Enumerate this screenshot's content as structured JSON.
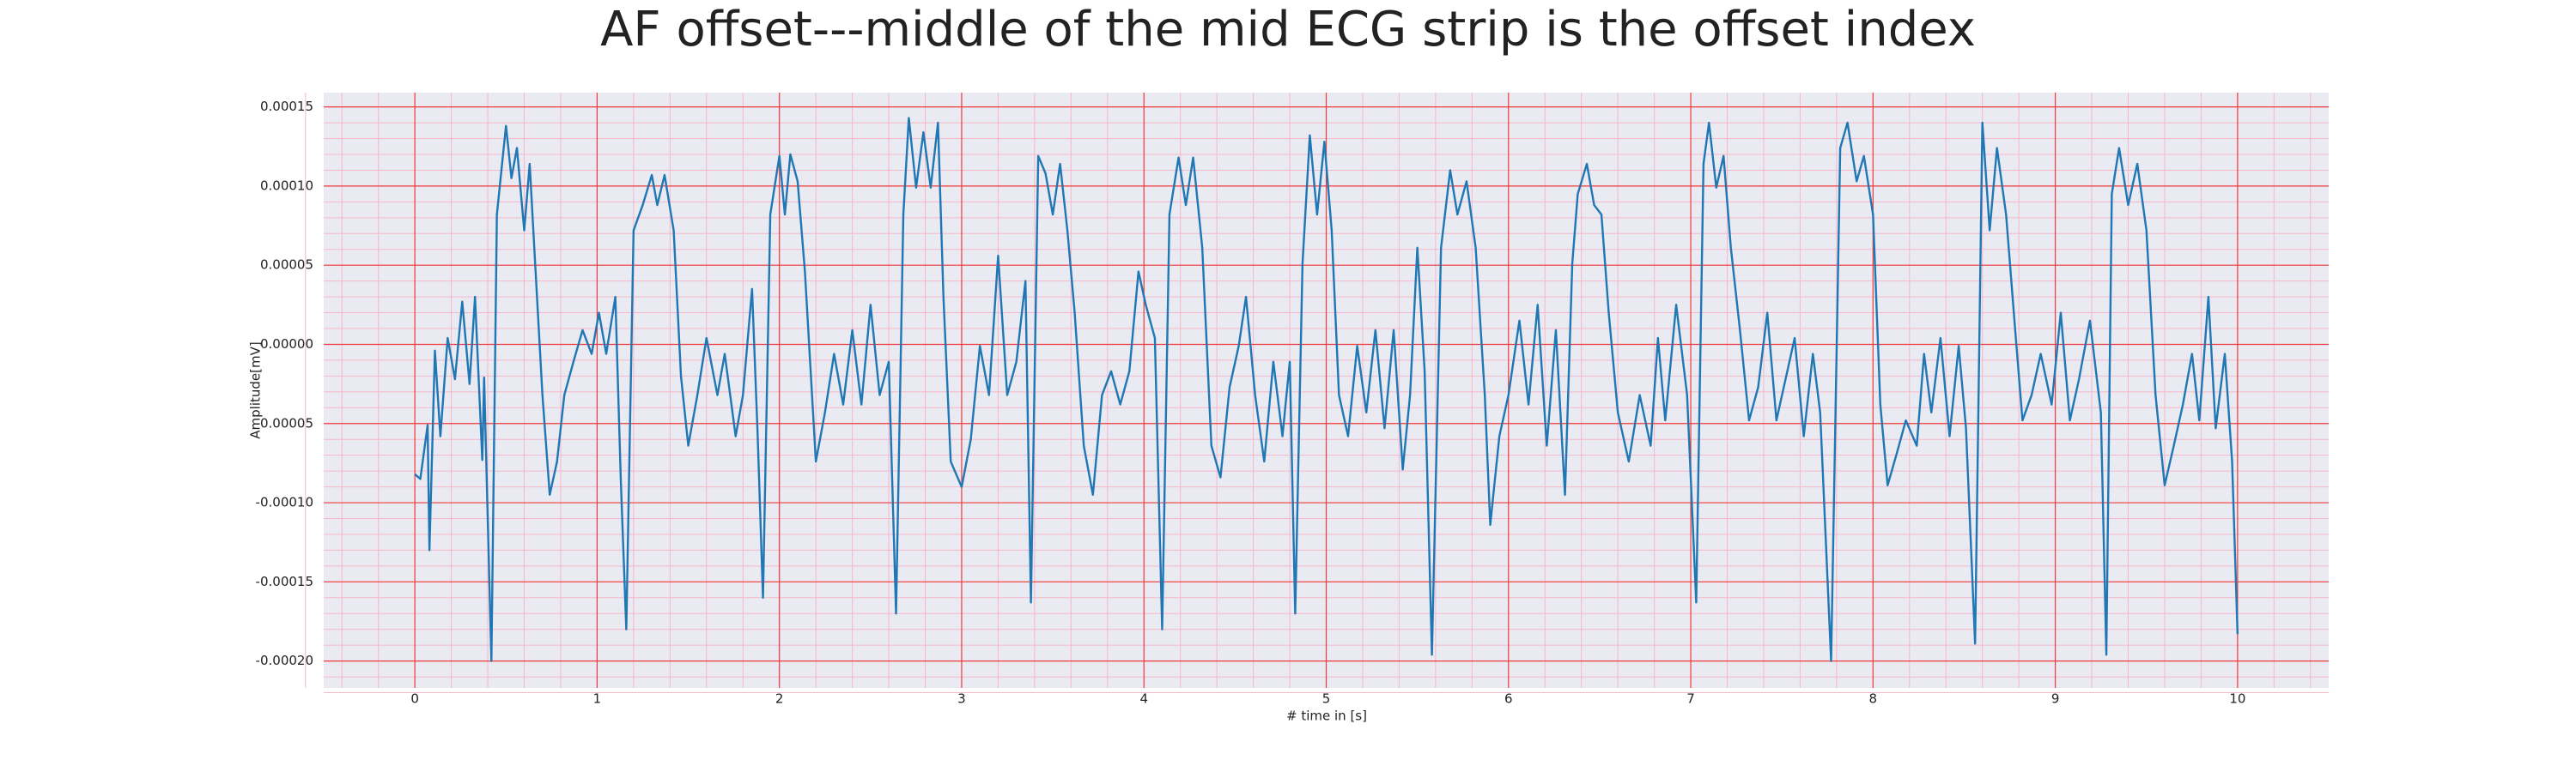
{
  "chart_data": {
    "type": "line",
    "title": "AF offset---middle of the mid ECG strip is the offset index",
    "xlabel": "# time in [s]",
    "ylabel": "Amplitude[mV]",
    "background": "#eaeaf2",
    "grid": true,
    "grid_color": "#f03c3c",
    "minor_grid": true,
    "minor_grid_color": "#f5b8c8",
    "xlim": [
      -0.5,
      10.5
    ],
    "xticks": [
      0,
      1,
      2,
      3,
      4,
      5,
      6,
      7,
      8,
      9,
      10
    ],
    "ylim": [
      -0.000217,
      0.000159
    ],
    "yticks": [
      {
        "value": -0.0002,
        "label": "-0.00020"
      },
      {
        "value": -0.00015,
        "label": "-0.00015"
      },
      {
        "value": -0.0001,
        "label": "-0.00010"
      },
      {
        "value": -5e-05,
        "label": "-0.00005"
      },
      {
        "value": 0,
        "label": "0.00000"
      },
      {
        "value": 5e-05,
        "label": "0.00005"
      },
      {
        "value": 0.0001,
        "label": "0.00010"
      },
      {
        "value": 0.00015,
        "label": "0.00015"
      }
    ],
    "series": [
      {
        "color": "#1f77b4",
        "x": [
          0,
          0.03,
          0.07,
          0.08,
          0.11,
          0.14,
          0.18,
          0.22,
          0.26,
          0.3,
          0.33,
          0.37,
          0.38,
          0.42,
          0.45,
          0.5,
          0.53,
          0.56,
          0.6,
          0.63,
          0.66,
          0.7,
          0.74,
          0.78,
          0.82,
          0.87,
          0.92,
          0.97,
          1.01,
          1.05,
          1.1,
          1.13,
          1.16,
          1.2,
          1.25,
          1.3,
          1.33,
          1.37,
          1.42,
          1.46,
          1.5,
          1.55,
          1.6,
          1.66,
          1.7,
          1.76,
          1.8,
          1.85,
          1.88,
          1.91,
          1.95,
          2.0,
          2.03,
          2.06,
          2.1,
          2.14,
          2.2,
          2.25,
          2.3,
          2.35,
          2.4,
          2.45,
          2.5,
          2.55,
          2.6,
          2.64,
          2.68,
          2.71,
          2.75,
          2.79,
          2.83,
          2.87,
          2.9,
          2.94,
          3.0,
          3.05,
          3.1,
          3.15,
          3.2,
          3.25,
          3.3,
          3.35,
          3.38,
          3.42,
          3.46,
          3.5,
          3.54,
          3.58,
          3.62,
          3.67,
          3.72,
          3.77,
          3.82,
          3.87,
          3.92,
          3.97,
          4.01,
          4.06,
          4.1,
          4.14,
          4.19,
          4.23,
          4.27,
          4.32,
          4.37,
          4.42,
          4.47,
          4.52,
          4.56,
          4.61,
          4.66,
          4.71,
          4.76,
          4.8,
          4.83,
          4.87,
          4.91,
          4.95,
          4.99,
          5.03,
          5.07,
          5.12,
          5.17,
          5.22,
          5.27,
          5.32,
          5.37,
          5.42,
          5.46,
          5.5,
          5.54,
          5.58,
          5.63,
          5.68,
          5.72,
          5.77,
          5.82,
          5.87,
          5.9,
          5.95,
          6.0,
          6.06,
          6.11,
          6.16,
          6.21,
          6.26,
          6.31,
          6.35,
          6.38,
          6.43,
          6.47,
          6.51,
          6.55,
          6.6,
          6.66,
          6.72,
          6.78,
          6.82,
          6.86,
          6.92,
          6.98,
          7.03,
          7.07,
          7.1,
          7.14,
          7.18,
          7.22,
          7.27,
          7.32,
          7.37,
          7.42,
          7.47,
          7.52,
          7.57,
          7.62,
          7.67,
          7.71,
          7.77,
          7.82,
          7.86,
          7.91,
          7.95,
          8.0,
          8.04,
          8.08,
          8.13,
          8.18,
          8.24,
          8.28,
          8.32,
          8.37,
          8.42,
          8.47,
          8.51,
          8.56,
          8.6,
          8.64,
          8.68,
          8.73,
          8.78,
          8.82,
          8.87,
          8.92,
          8.98,
          9.03,
          9.08,
          9.13,
          9.19,
          9.25,
          9.28,
          9.31,
          9.35,
          9.4,
          9.45,
          9.5,
          9.55,
          9.6,
          9.65,
          9.7,
          9.75,
          9.79,
          9.84,
          9.88,
          9.93,
          9.97,
          10.0
        ],
        "values": [
          -8.2e-05,
          -8.5e-05,
          -5.1e-05,
          -0.00013,
          -4e-06,
          -5.8e-05,
          4e-06,
          -2.2e-05,
          2.7e-05,
          -2.5e-05,
          3e-05,
          -7.3e-05,
          -2.1e-05,
          -0.0002,
          8.2e-05,
          0.000138,
          0.000105,
          0.000124,
          7.2e-05,
          0.000114,
          5.1e-05,
          -3.2e-05,
          -9.5e-05,
          -7.4e-05,
          -3.2e-05,
          -1.1e-05,
          9e-06,
          -6e-06,
          2e-05,
          -6e-06,
          3e-05,
          -8.6e-05,
          -0.00018,
          7.2e-05,
          8.8e-05,
          0.000107,
          8.8e-05,
          0.000107,
          7.2e-05,
          -2e-05,
          -6.4e-05,
          -3.2e-05,
          4e-06,
          -3.2e-05,
          -6e-06,
          -5.8e-05,
          -3.2e-05,
          3.5e-05,
          -5.5e-05,
          -0.00016,
          8.2e-05,
          0.000119,
          8.2e-05,
          0.00012,
          0.000103,
          4.6e-05,
          -7.4e-05,
          -4.3e-05,
          -6e-06,
          -3.8e-05,
          9e-06,
          -3.8e-05,
          2.5e-05,
          -3.2e-05,
          -1.1e-05,
          -0.00017,
          8.2e-05,
          0.000143,
          9.9e-05,
          0.000134,
          9.9e-05,
          0.00014,
          3e-05,
          -7.4e-05,
          -9e-05,
          -6e-05,
          -1e-06,
          -3.2e-05,
          5.6e-05,
          -3.2e-05,
          -1.1e-05,
          4e-05,
          -0.000163,
          0.000119,
          0.000108,
          8.2e-05,
          0.000114,
          7.2e-05,
          2e-05,
          -6.4e-05,
          -9.5e-05,
          -3.2e-05,
          -1.7e-05,
          -3.8e-05,
          -1.7e-05,
          4.6e-05,
          2.5e-05,
          4e-06,
          -0.00018,
          8.2e-05,
          0.000118,
          8.8e-05,
          0.000118,
          6.1e-05,
          -6.4e-05,
          -8.4e-05,
          -2.7e-05,
          -1e-06,
          3e-05,
          -3.2e-05,
          -7.4e-05,
          -1.1e-05,
          -5.8e-05,
          -1.1e-05,
          -0.00017,
          5.1e-05,
          0.000132,
          8.2e-05,
          0.000128,
          7.2e-05,
          -3.2e-05,
          -5.8e-05,
          -1e-06,
          -4.3e-05,
          9e-06,
          -5.3e-05,
          9e-06,
          -7.9e-05,
          -3.2e-05,
          6.1e-05,
          -1.7e-05,
          -0.000196,
          6.1e-05,
          0.00011,
          8.2e-05,
          0.000103,
          6.1e-05,
          -3.2e-05,
          -0.000114,
          -5.8e-05,
          -3.2e-05,
          1.5e-05,
          -3.8e-05,
          2.5e-05,
          -6.4e-05,
          9e-06,
          -9.5e-05,
          5.1e-05,
          9.5e-05,
          0.000114,
          8.8e-05,
          8.2e-05,
          2e-05,
          -4.3e-05,
          -7.4e-05,
          -3.2e-05,
          -6.4e-05,
          4e-06,
          -4.8e-05,
          2.5e-05,
          -3.2e-05,
          -0.000163,
          0.000114,
          0.00014,
          9.9e-05,
          0.000119,
          6.1e-05,
          9e-06,
          -4.8e-05,
          -2.7e-05,
          2e-05,
          -4.8e-05,
          -2.2e-05,
          4e-06,
          -5.8e-05,
          -6e-06,
          -4.3e-05,
          -0.0002,
          0.000124,
          0.00014,
          0.000103,
          0.000119,
          8.2e-05,
          -3.8e-05,
          -8.9e-05,
          -6.9e-05,
          -4.8e-05,
          -6.4e-05,
          -6e-06,
          -4.3e-05,
          4e-06,
          -5.8e-05,
          -1e-06,
          -5.3e-05,
          -0.000189,
          0.00014,
          7.2e-05,
          0.000124,
          8.2e-05,
          9e-06,
          -4.8e-05,
          -3.2e-05,
          -6e-06,
          -3.8e-05,
          2e-05,
          -4.8e-05,
          -2.2e-05,
          1.5e-05,
          -4.3e-05,
          -0.000196,
          9.5e-05,
          0.000124,
          8.8e-05,
          0.000114,
          7.2e-05,
          -3.2e-05,
          -8.9e-05,
          -6.4e-05,
          -3.8e-05,
          -6e-06,
          -4.8e-05,
          3e-05,
          -5.3e-05,
          -6e-06,
          -7.4e-05,
          -0.000183
        ]
      }
    ]
  }
}
